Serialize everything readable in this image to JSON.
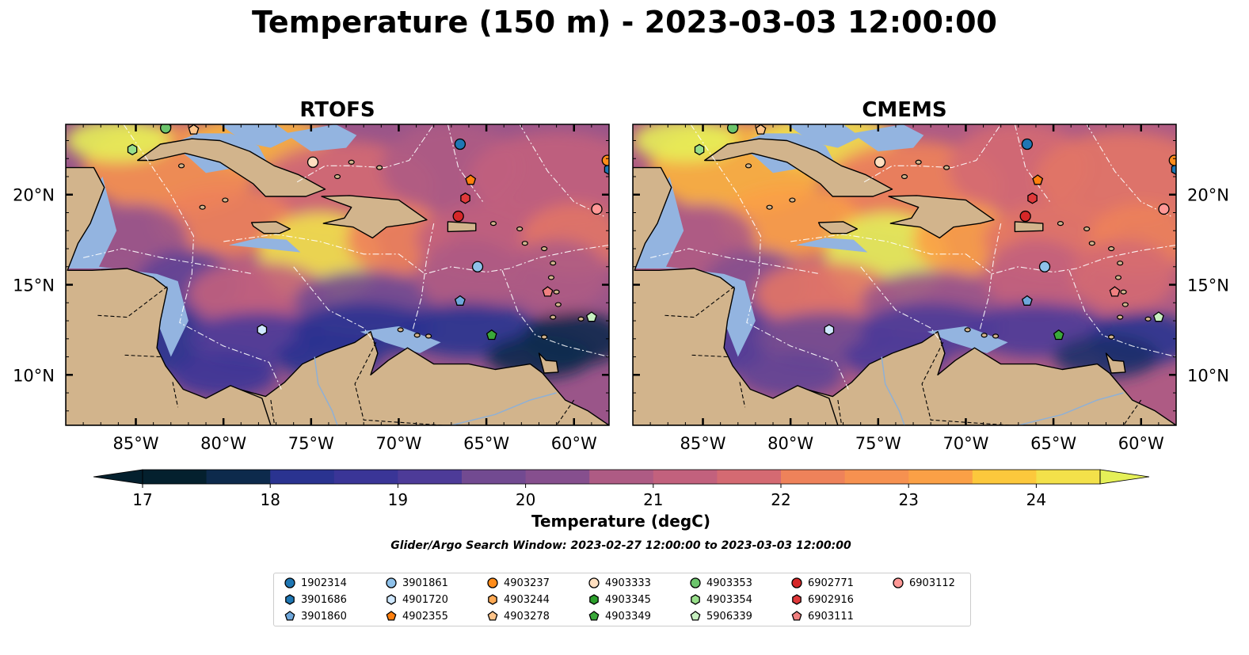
{
  "title": "Temperature (150 m) - 2023-03-03 12:00:00",
  "panels": [
    {
      "title": "RTOFS",
      "x_ticks": [
        "85°W",
        "80°W",
        "75°W",
        "70°W",
        "65°W",
        "60°W"
      ]
    },
    {
      "title": "CMEMS",
      "x_ticks": [
        "85°W",
        "80°W",
        "75°W",
        "70°W",
        "65°W",
        "60°W"
      ]
    }
  ],
  "lat_ticks": [
    "20°N",
    "15°N",
    "10°N"
  ],
  "lon_tick_values": [
    -85,
    -80,
    -75,
    -70,
    -65,
    -60
  ],
  "lat_tick_values": [
    20,
    15,
    10
  ],
  "extent": {
    "lon": [
      -89,
      -58
    ],
    "lat": [
      7.2,
      23.9
    ]
  },
  "colorbar": {
    "label": "Temperature (degC)",
    "ticks": [
      "17",
      "18",
      "19",
      "20",
      "21",
      "22",
      "23",
      "24"
    ],
    "tick_values": [
      17,
      18,
      19,
      20,
      21,
      22,
      23,
      24
    ],
    "range": [
      17,
      24.5
    ],
    "extend": "both",
    "colors": [
      "#04202e",
      "#0d2a4c",
      "#1c3069",
      "#2a3390",
      "#3a3597",
      "#4d3b98",
      "#5f4395",
      "#724a91",
      "#864f8e",
      "#9a5589",
      "#ae5b84",
      "#c2617d",
      "#d46a72",
      "#e27566",
      "#ee825a",
      "#f69150",
      "#fba046",
      "#fcb33f",
      "#fcc83c",
      "#f3e14a",
      "#e5f058"
    ]
  },
  "search_window": "Glider/Argo Search Window: 2023-02-27 12:00:00 to 2023-03-03 12:00:00",
  "legend": [
    {
      "id": "1902314",
      "color": "#1f77b4",
      "marker": "circle"
    },
    {
      "id": "3901686",
      "color": "#1f77b4",
      "marker": "hexagon"
    },
    {
      "id": "3901860",
      "color": "#6fa8dc",
      "marker": "pentagon"
    },
    {
      "id": "3901861",
      "color": "#8ec1ea",
      "marker": "circle"
    },
    {
      "id": "4901720",
      "color": "#cfe8ff",
      "marker": "hexagon"
    },
    {
      "id": "4902355",
      "color": "#ff7f0e",
      "marker": "pentagon"
    },
    {
      "id": "4903237",
      "color": "#ff8c1a",
      "marker": "circle"
    },
    {
      "id": "4903244",
      "color": "#ffaa55",
      "marker": "hexagon"
    },
    {
      "id": "4903278",
      "color": "#ffc48a",
      "marker": "pentagon"
    },
    {
      "id": "4903333",
      "color": "#ffdfc0",
      "marker": "circle"
    },
    {
      "id": "4903345",
      "color": "#2ca02c",
      "marker": "hexagon"
    },
    {
      "id": "4903349",
      "color": "#3aa83a",
      "marker": "pentagon"
    },
    {
      "id": "4903353",
      "color": "#6cc46c",
      "marker": "circle"
    },
    {
      "id": "4903354",
      "color": "#98df8a",
      "marker": "hexagon"
    },
    {
      "id": "5906339",
      "color": "#c7f0c0",
      "marker": "pentagon"
    },
    {
      "id": "6902771",
      "color": "#d62728",
      "marker": "circle"
    },
    {
      "id": "6902916",
      "color": "#e0393a",
      "marker": "hexagon"
    },
    {
      "id": "6903111",
      "color": "#f08080",
      "marker": "pentagon"
    },
    {
      "id": "6903112",
      "color": "#ff9896",
      "marker": "circle"
    }
  ],
  "floats": [
    {
      "id": "1902314",
      "lon": -66.5,
      "lat": 22.8
    },
    {
      "id": "3901686",
      "lon": -58.0,
      "lat": 21.4
    },
    {
      "id": "3901860",
      "lon": -66.5,
      "lat": 14.1
    },
    {
      "id": "3901861",
      "lon": -65.5,
      "lat": 16.0
    },
    {
      "id": "4901720",
      "lon": -77.8,
      "lat": 12.5
    },
    {
      "id": "4902355",
      "lon": -65.9,
      "lat": 20.8
    },
    {
      "id": "4903237",
      "lon": -58.1,
      "lat": 21.9
    },
    {
      "id": "4903278",
      "lon": -81.7,
      "lat": 23.6
    },
    {
      "id": "4903333",
      "lon": -74.9,
      "lat": 21.8
    },
    {
      "id": "4903349",
      "lon": -64.7,
      "lat": 12.2
    },
    {
      "id": "4903353",
      "lon": -83.3,
      "lat": 23.7
    },
    {
      "id": "4903354",
      "lon": -85.2,
      "lat": 22.5
    },
    {
      "id": "5906339",
      "lon": -59.0,
      "lat": 13.2
    },
    {
      "id": "6902771",
      "lon": -66.6,
      "lat": 18.8
    },
    {
      "id": "6902916",
      "lon": -66.2,
      "lat": 19.8
    },
    {
      "id": "6903111",
      "lon": -61.5,
      "lat": 14.6
    },
    {
      "id": "6903112",
      "lon": -58.7,
      "lat": 19.2
    }
  ]
}
